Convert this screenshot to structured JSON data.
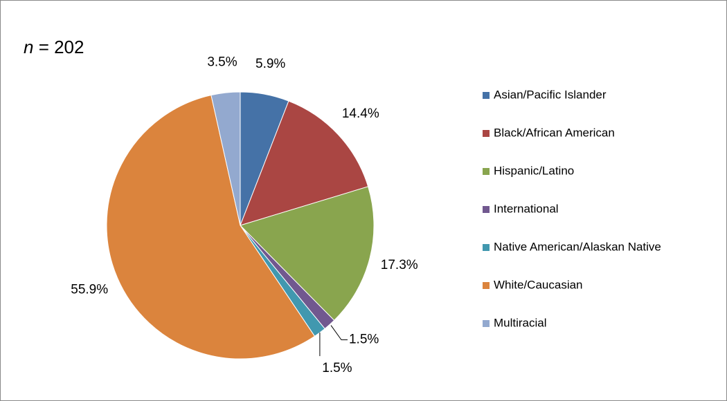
{
  "chart_data": {
    "type": "pie",
    "title": "n = 202",
    "categories": [
      "Asian/Pacific Islander",
      "Black/African American",
      "Hispanic/Latino",
      "International",
      "Native American/Alaskan Native",
      "White/Caucasian",
      "Multiracial"
    ],
    "values": [
      5.9,
      14.4,
      17.3,
      1.5,
      1.5,
      55.9,
      3.5
    ],
    "value_labels": [
      "5.9%",
      "14.4%",
      "17.3%",
      "1.5%",
      "1.5%",
      "55.9%",
      "3.5%"
    ],
    "colors": [
      "#4572a7",
      "#aa4643",
      "#89a54e",
      "#71588f",
      "#4198af",
      "#db843d",
      "#93a9cf"
    ],
    "legend": "right"
  }
}
